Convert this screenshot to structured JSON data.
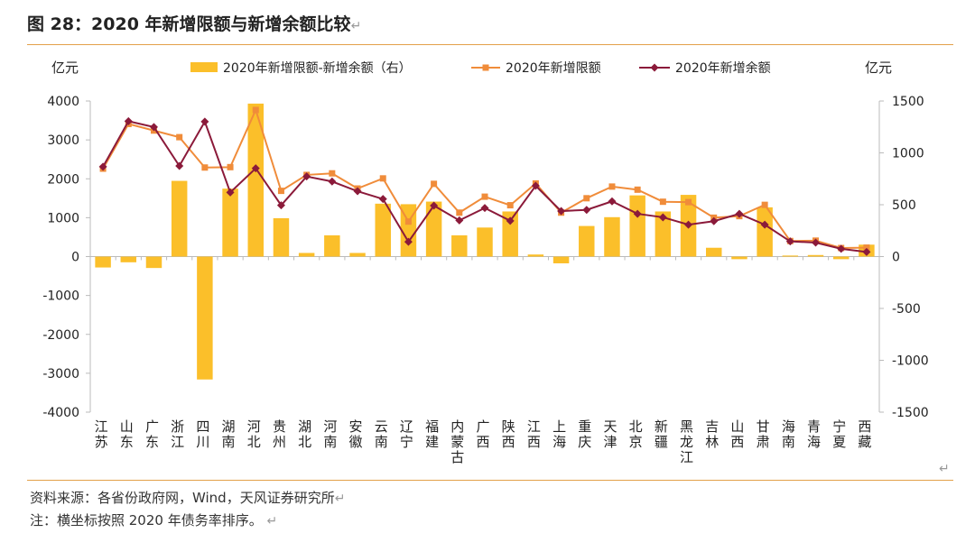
{
  "title": "图 28：2020 年新增限额与新增余额比较",
  "title_mark": "↵",
  "source": "资料来源：各省份政府网，Wind，天风证券研究所",
  "note": "注：横坐标按照 2020 年债务率排序。",
  "note_mark": "↵",
  "corner_mark": "↵",
  "colors": {
    "bar": "#FBBF2A",
    "limit_line": "#F08C3A",
    "balance_line": "#8B1A3A",
    "rule": "#E3A04A"
  },
  "chart_data": {
    "type": "bar",
    "y_left_unit": "亿元",
    "y_right_unit": "亿元",
    "y_left_lim": [
      -4000,
      4000
    ],
    "y_right_lim": [
      -1500,
      1500
    ],
    "y_left_ticks": [
      "4000",
      "3000",
      "2000",
      "1000",
      "0",
      "-1000",
      "-2000",
      "-3000",
      "-4000"
    ],
    "y_right_ticks": [
      "1500",
      "1000",
      "500",
      "0",
      "-500",
      "-1000",
      "-1500"
    ],
    "legend": [
      "2020年新增限额-新增余额（右）",
      "2020年新增限额",
      "2020年新增余额"
    ],
    "categories": [
      "江苏",
      "山东",
      "广东",
      "浙江",
      "四川",
      "湖南",
      "河北",
      "贵州",
      "湖北",
      "河南",
      "安徽",
      "云南",
      "辽宁",
      "福建",
      "内蒙古",
      "广西",
      "陕西",
      "江西",
      "上海",
      "重庆",
      "天津",
      "北京",
      "新疆",
      "黑龙江",
      "吉林",
      "山西",
      "甘肃",
      "海南",
      "青海",
      "宁夏",
      "西藏"
    ],
    "series": [
      {
        "name": "2020年新增限额-新增余额（右）",
        "type": "bar",
        "axis": "right",
        "values": [
          -105,
          -55,
          -110,
          730,
          -1185,
          655,
          1475,
          370,
          35,
          205,
          35,
          510,
          505,
          530,
          205,
          280,
          435,
          20,
          -65,
          295,
          380,
          590,
          435,
          595,
          85,
          -25,
          475,
          10,
          15,
          -25,
          115
        ]
      },
      {
        "name": "2020年新增限额",
        "type": "line",
        "axis": "left",
        "values": [
          2260,
          3410,
          3240,
          3070,
          2290,
          2300,
          3770,
          1690,
          2100,
          2140,
          1750,
          2010,
          900,
          1870,
          1130,
          1540,
          1320,
          1880,
          1130,
          1500,
          1800,
          1720,
          1410,
          1400,
          1000,
          1040,
          1330,
          400,
          410,
          220,
          230
        ]
      },
      {
        "name": "2020年新增余额",
        "type": "line",
        "axis": "left",
        "values": [
          2310,
          3480,
          3330,
          2330,
          3470,
          1650,
          2270,
          1320,
          2060,
          1930,
          1680,
          1480,
          380,
          1310,
          930,
          1250,
          920,
          1820,
          1170,
          1200,
          1420,
          1100,
          1010,
          820,
          910,
          1100,
          820,
          390,
          360,
          200,
          120
        ]
      }
    ]
  }
}
